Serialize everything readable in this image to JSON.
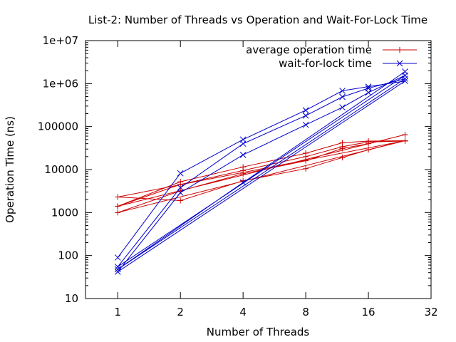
{
  "chart_data": {
    "type": "line",
    "title": "List-2: Number of Threads vs Operation and Wait-For-Lock Time",
    "xlabel": "Number of Threads",
    "ylabel": "Operation Time (ns)",
    "x_scale": "log2",
    "y_scale": "log10",
    "xlim": [
      0.7,
      32
    ],
    "ylim": [
      10,
      10000000
    ],
    "x_ticks": [
      1,
      2,
      4,
      8,
      16,
      32
    ],
    "x_tick_labels": [
      "1",
      "2",
      "4",
      "8",
      "16",
      "32"
    ],
    "y_ticks": [
      10,
      100,
      1000,
      10000,
      100000,
      1000000,
      10000000
    ],
    "y_tick_labels": [
      "10",
      "100",
      "1000",
      "10000",
      "100000",
      "1e+06",
      "1e+07"
    ],
    "grid": false,
    "legend_position": "top-right",
    "series": [
      {
        "name": "average operation time",
        "color": "#cc0000",
        "marker": "+",
        "points": [
          [
            1,
            1400
          ],
          [
            2,
            5200
          ],
          [
            4,
            11500
          ],
          [
            8,
            24000
          ],
          [
            12,
            42000
          ],
          [
            16,
            46000
          ],
          [
            24,
            47000
          ],
          [
            1,
            2300
          ],
          [
            2,
            1900
          ],
          [
            4,
            5500
          ],
          [
            8,
            10500
          ],
          [
            12,
            19000
          ],
          [
            16,
            29000
          ],
          [
            24,
            47000
          ],
          [
            1,
            1000
          ],
          [
            2,
            3200
          ],
          [
            4,
            8000
          ],
          [
            8,
            16000
          ],
          [
            12,
            31000
          ],
          [
            16,
            40000
          ],
          [
            24,
            65000
          ],
          [
            1,
            1400
          ],
          [
            2,
            4500
          ],
          [
            4,
            9500
          ],
          [
            8,
            20000
          ],
          [
            12,
            34000
          ],
          [
            16,
            44000
          ],
          [
            24,
            46000
          ]
        ]
      },
      {
        "name": "wait-for-lock time",
        "color": "#0000cc",
        "marker": "x",
        "points": [
          [
            1,
            90
          ],
          [
            2,
            8200
          ],
          [
            4,
            50000
          ],
          [
            8,
            240000
          ],
          [
            12,
            680000
          ],
          [
            16,
            850000
          ],
          [
            24,
            1150000
          ],
          [
            1,
            42
          ],
          [
            2,
            2900
          ],
          [
            4,
            22000
          ],
          [
            8,
            110000
          ],
          [
            12,
            280000
          ],
          [
            16,
            620000
          ],
          [
            24,
            1550000
          ],
          [
            1,
            55
          ],
          [
            2,
            3800
          ],
          [
            4,
            40000
          ],
          [
            8,
            180000
          ],
          [
            12,
            490000
          ],
          [
            16,
            780000
          ],
          [
            24,
            1300000
          ],
          [
            1,
            48
          ],
          [
            4,
            5000
          ],
          [
            24,
            1900000
          ]
        ]
      }
    ]
  }
}
